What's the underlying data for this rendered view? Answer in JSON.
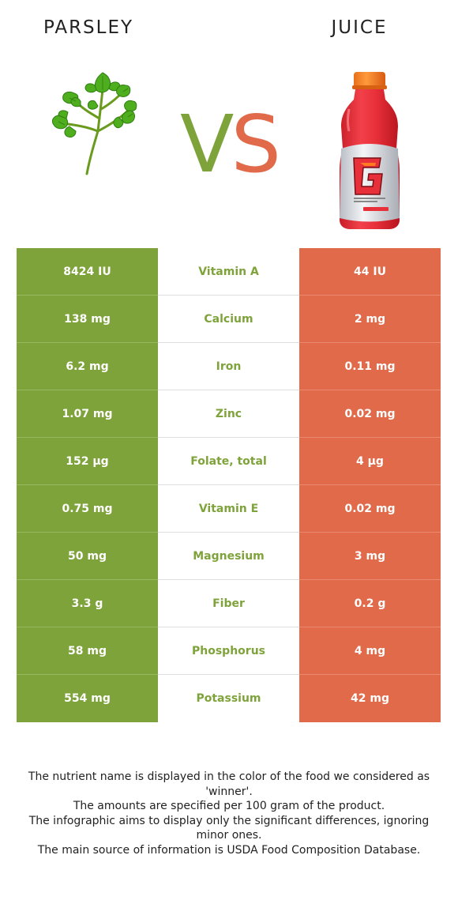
{
  "header": {
    "left_food": "PARSLEY",
    "right_food": "JUICE",
    "vs_v": "V",
    "vs_s": "S"
  },
  "colors": {
    "winner_left": "#7fa33b",
    "winner_right": "#e16a4a"
  },
  "icons": {
    "left_image": "parsley-icon",
    "right_image": "juice-bottle-icon"
  },
  "rows": [
    {
      "left": "8424 IU",
      "nutrient": "Vitamin A",
      "right": "44 IU"
    },
    {
      "left": "138 mg",
      "nutrient": "Calcium",
      "right": "2 mg"
    },
    {
      "left": "6.2 mg",
      "nutrient": "Iron",
      "right": "0.11 mg"
    },
    {
      "left": "1.07 mg",
      "nutrient": "Zinc",
      "right": "0.02 mg"
    },
    {
      "left": "152 µg",
      "nutrient": "Folate, total",
      "right": "4 µg"
    },
    {
      "left": "0.75 mg",
      "nutrient": "Vitamin E",
      "right": "0.02 mg"
    },
    {
      "left": "50 mg",
      "nutrient": "Magnesium",
      "right": "3 mg"
    },
    {
      "left": "3.3 g",
      "nutrient": "Fiber",
      "right": "0.2 g"
    },
    {
      "left": "58 mg",
      "nutrient": "Phosphorus",
      "right": "4 mg"
    },
    {
      "left": "554 mg",
      "nutrient": "Potassium",
      "right": "42 mg"
    }
  ],
  "footnote": [
    "The nutrient name is displayed in the color of the food we considered as 'winner'.",
    "The amounts are specified per 100 gram of the product.",
    "The infographic aims to display only the significant differences, ignoring minor ones.",
    "The main source of information is USDA Food Composition Database."
  ]
}
